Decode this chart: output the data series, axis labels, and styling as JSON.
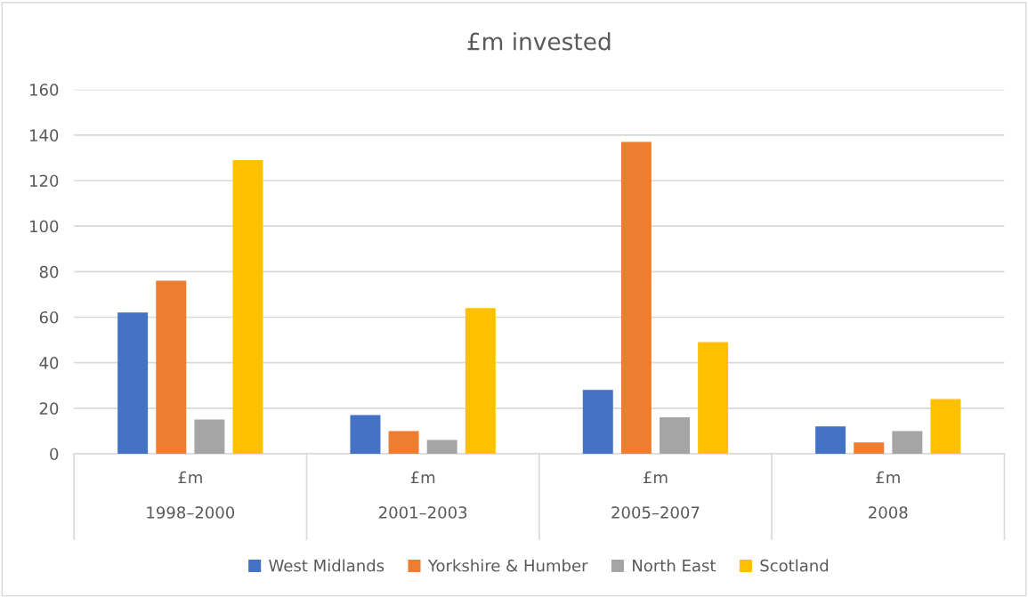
{
  "chart_data": {
    "type": "bar",
    "title": "£m invested",
    "categories": [
      "£m\n1998–2000",
      "£m\n2001–2003",
      "£m\n2005–2007",
      "£m\n2008"
    ],
    "series": [
      {
        "name": "West Midlands",
        "color": "#4472c4",
        "values": [
          62,
          17,
          28,
          12
        ]
      },
      {
        "name": "Yorkshire & Humber",
        "color": "#ed7d31",
        "values": [
          76,
          10,
          137,
          5
        ]
      },
      {
        "name": "North East",
        "color": "#a5a5a5",
        "values": [
          15,
          6,
          16,
          10
        ]
      },
      {
        "name": "Scotland",
        "color": "#ffc000",
        "values": [
          129,
          64,
          49,
          24
        ]
      }
    ],
    "ylim": [
      0,
      160
    ],
    "yticks": [
      0,
      20,
      40,
      60,
      80,
      100,
      120,
      140,
      160
    ],
    "grid": "y",
    "legend": "bottom"
  }
}
